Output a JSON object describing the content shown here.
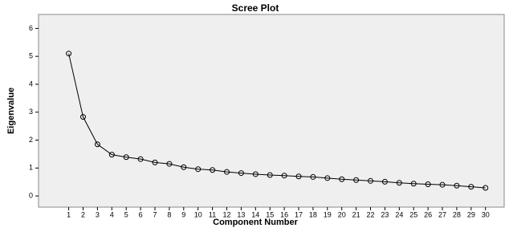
{
  "chart_data": {
    "type": "line",
    "title": "Scree Plot",
    "x_label": "Component Number",
    "y_label": "Eigenvalue",
    "x": [
      1,
      2,
      3,
      4,
      5,
      6,
      7,
      8,
      9,
      10,
      11,
      12,
      13,
      14,
      15,
      16,
      17,
      18,
      19,
      20,
      21,
      22,
      23,
      24,
      25,
      26,
      27,
      28,
      29,
      30
    ],
    "series": [
      {
        "name": "Eigenvalue",
        "color": "#000000",
        "values": [
          5.1,
          2.83,
          1.85,
          1.48,
          1.39,
          1.32,
          1.2,
          1.15,
          1.03,
          0.96,
          0.93,
          0.86,
          0.82,
          0.78,
          0.75,
          0.73,
          0.7,
          0.68,
          0.64,
          0.6,
          0.57,
          0.54,
          0.51,
          0.47,
          0.44,
          0.42,
          0.4,
          0.37,
          0.33,
          0.29
        ]
      }
    ],
    "xlim": [
      -1.1,
      31.3
    ],
    "xticks": [
      1,
      2,
      3,
      4,
      5,
      6,
      7,
      8,
      9,
      10,
      11,
      12,
      13,
      14,
      15,
      16,
      17,
      18,
      19,
      20,
      21,
      22,
      23,
      24,
      25,
      26,
      27,
      28,
      29,
      30
    ],
    "ylim": [
      -0.4,
      6.5
    ],
    "yticks": [
      0,
      1,
      2,
      3,
      4,
      5,
      6
    ]
  }
}
